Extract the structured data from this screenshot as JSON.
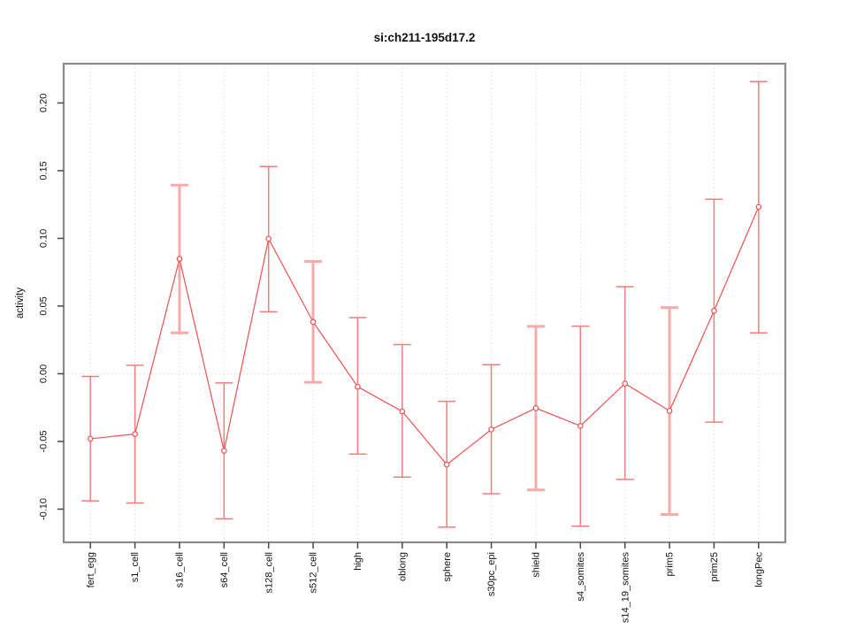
{
  "window": {
    "background": "#ffffff"
  },
  "chart_data": {
    "type": "line",
    "subtype": "points-with-error-bars",
    "title": "si:ch211-195d17.2",
    "xlabel": "",
    "ylabel": "activity",
    "legend_position": "none",
    "grid": {
      "vertical_dotted_per_category": true,
      "horizontal_dotted_at_zero": true
    },
    "categories": [
      "fert_egg",
      "s1_cell",
      "s16_cell",
      "s64_cell",
      "s128_cell",
      "s512_cell",
      "high",
      "oblong",
      "sphere",
      "s30pc_epi",
      "shield",
      "s4_somites",
      "s14_19_somites",
      "prim5",
      "prim25",
      "longPec"
    ],
    "series": [
      {
        "name": "activity",
        "values": [
          -0.048,
          -0.0445,
          0.0849,
          -0.0569,
          0.0997,
          0.0383,
          -0.0096,
          -0.0278,
          -0.0671,
          -0.0411,
          -0.0254,
          -0.0385,
          -0.0072,
          -0.0274,
          0.0465,
          0.1232
        ],
        "error_low": [
          -0.0939,
          -0.0954,
          0.0302,
          -0.1071,
          0.0458,
          -0.0063,
          -0.0593,
          -0.0763,
          -0.1132,
          -0.0886,
          -0.0858,
          -0.1126,
          -0.078,
          -0.1039,
          -0.0357,
          0.0302
        ],
        "error_high": [
          -0.002,
          0.0063,
          0.1393,
          -0.0067,
          0.153,
          0.083,
          0.0415,
          0.0215,
          -0.0204,
          0.0067,
          0.035,
          0.0352,
          0.0643,
          0.0489,
          0.1289,
          0.2158
        ],
        "thick_error_bar": [
          false,
          false,
          true,
          false,
          false,
          true,
          false,
          false,
          false,
          false,
          true,
          false,
          false,
          true,
          false,
          false
        ]
      }
    ],
    "yticks": [
      -0.1,
      -0.05,
      0.0,
      0.05,
      0.1,
      0.15,
      0.2
    ],
    "ytick_labels": [
      "-0.10",
      "-0.05",
      "0.00",
      "0.05",
      "0.10",
      "0.15",
      "0.20"
    ],
    "ylim": [
      -0.1245,
      0.229
    ],
    "colors": {
      "line": "#f05050",
      "point_stroke": "#f05050",
      "point_fill": "#ffffff",
      "errorbar_thin": "#f17e7e",
      "errorbar_thick": "#f6abab",
      "grid": "#dadada",
      "box": "#8a8a8a",
      "tick": "#474747",
      "text": "#111111"
    }
  }
}
